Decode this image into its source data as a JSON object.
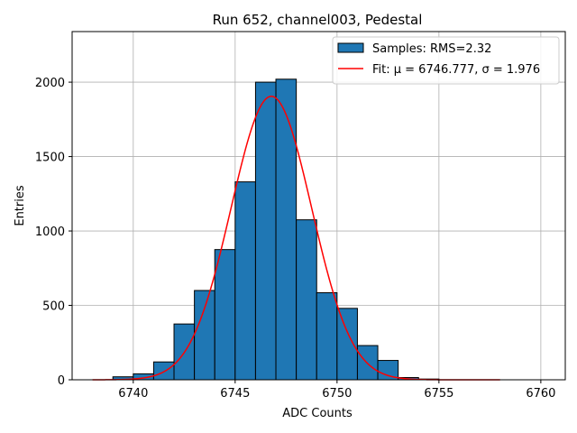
{
  "chart_data": {
    "type": "bar",
    "title": "Run 652, channel003, Pedestal",
    "xlabel": "ADC Counts",
    "ylabel": "Entries",
    "xlim": [
      6737,
      6761.2
    ],
    "ylim": [
      0,
      2340
    ],
    "xticks": [
      6740,
      6745,
      6750,
      6755,
      6760
    ],
    "yticks": [
      0,
      500,
      1000,
      1500,
      2000
    ],
    "grid": true,
    "legend_position": "top-right",
    "colors": {
      "bars": "#1f77b4",
      "fit": "#ff0000",
      "grid": "#b0b0b0"
    },
    "histogram": {
      "name": "Samples: RMS=2.32",
      "bin_edges": [
        6739,
        6740,
        6741,
        6742,
        6743,
        6744,
        6745,
        6746,
        6747,
        6748,
        6749,
        6750,
        6751,
        6752,
        6753,
        6754,
        6755
      ],
      "counts": [
        20,
        40,
        120,
        375,
        600,
        875,
        1330,
        2000,
        2020,
        1075,
        585,
        480,
        230,
        130,
        15,
        5
      ]
    },
    "fit": {
      "name": "Fit: μ = 6746.777, σ = 1.976",
      "mu": 6746.777,
      "sigma": 1.976,
      "amplitude": 1905,
      "x_range": [
        6738,
        6758
      ]
    }
  }
}
